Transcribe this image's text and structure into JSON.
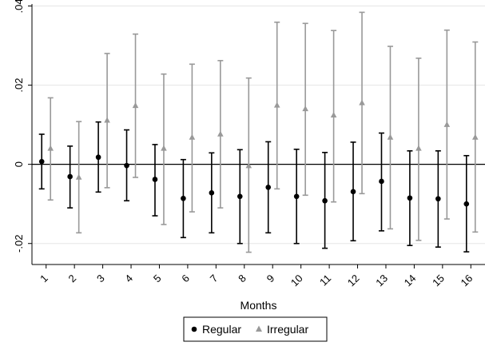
{
  "chart_data": {
    "type": "scatter",
    "xlabel": "Months",
    "ylabel": "",
    "x": [
      "1",
      "2",
      "3",
      "4",
      "5",
      "6",
      "7",
      "8",
      "9",
      "10",
      "11",
      "12",
      "13",
      "14",
      "15",
      "16"
    ],
    "xlim": [
      0.5,
      16.5
    ],
    "ylim": [
      -0.0253,
      0.0405
    ],
    "yticks": [
      {
        "value": -0.02,
        "label": "-.02"
      },
      {
        "value": 0,
        "label": "0"
      },
      {
        "value": 0.02,
        "label": ".02"
      },
      {
        "value": 0.04,
        "label": ".04"
      }
    ],
    "grid": true,
    "zero_line": true,
    "legend": {
      "position": "bottom-center"
    },
    "series": [
      {
        "name": "Regular",
        "marker": "circle",
        "color": "#000000",
        "values": [
          0.0007,
          -0.0031,
          0.0018,
          -0.0003,
          -0.0038,
          -0.0086,
          -0.0072,
          -0.0081,
          -0.0058,
          -0.0081,
          -0.0092,
          -0.0069,
          -0.0043,
          -0.0085,
          -0.0087,
          -0.01
        ],
        "lower": [
          -0.0062,
          -0.011,
          -0.007,
          -0.0092,
          -0.013,
          -0.0185,
          -0.0173,
          -0.02,
          -0.0173,
          -0.02,
          -0.0212,
          -0.0193,
          -0.0168,
          -0.0205,
          -0.0209,
          -0.0221
        ],
        "upper": [
          0.0076,
          0.0046,
          0.0107,
          0.0087,
          0.005,
          0.0012,
          0.0029,
          0.0037,
          0.0057,
          0.0038,
          0.003,
          0.0056,
          0.0079,
          0.0034,
          0.0034,
          0.0022
        ]
      },
      {
        "name": "Irregular",
        "marker": "triangle",
        "color": "#999999",
        "values": [
          0.004,
          -0.0033,
          0.0111,
          0.0148,
          0.004,
          0.0068,
          0.0076,
          -0.0004,
          0.0149,
          0.014,
          0.0124,
          0.0155,
          0.0068,
          0.004,
          0.01,
          0.0068
        ],
        "lower": [
          -0.009,
          -0.0173,
          -0.0059,
          -0.0033,
          -0.0152,
          -0.012,
          -0.011,
          -0.0222,
          -0.0062,
          -0.0078,
          -0.0095,
          -0.0074,
          -0.0163,
          -0.0192,
          -0.0138,
          -0.0171
        ],
        "upper": [
          0.0168,
          0.0108,
          0.028,
          0.0329,
          0.0228,
          0.0253,
          0.0262,
          0.0218,
          0.0359,
          0.0356,
          0.0338,
          0.0384,
          0.0298,
          0.0268,
          0.0339,
          0.0309
        ]
      }
    ]
  }
}
